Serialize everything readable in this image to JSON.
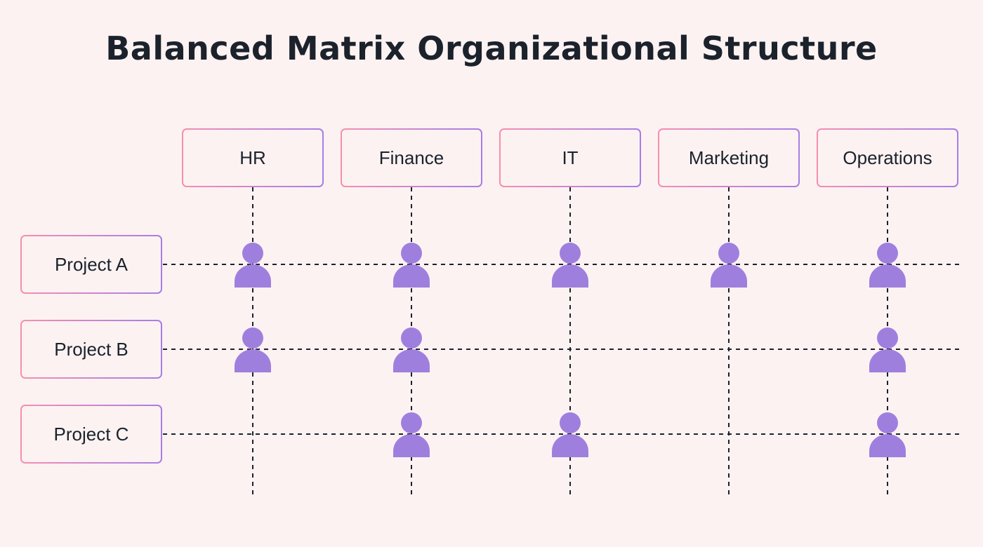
{
  "title": "Balanced Matrix Organizational Structure",
  "departments": [
    {
      "label": "HR"
    },
    {
      "label": "Finance"
    },
    {
      "label": "IT"
    },
    {
      "label": "Marketing"
    },
    {
      "label": "Operations"
    }
  ],
  "projects": [
    {
      "label": "Project A",
      "members": [
        "HR",
        "Finance",
        "IT",
        "Marketing",
        "Operations"
      ]
    },
    {
      "label": "Project B",
      "members": [
        "HR",
        "Finance",
        "Operations"
      ]
    },
    {
      "label": "Project C",
      "members": [
        "Finance",
        "IT",
        "Operations"
      ]
    }
  ],
  "colors": {
    "background": "#fdf2f2",
    "title": "#1b222c",
    "box_gradient_start": "#f48fb1",
    "box_gradient_end": "#a57ee6",
    "person": "#9f7fde",
    "grid_line": "#1b222c"
  },
  "icons": {
    "member": "person-icon"
  }
}
